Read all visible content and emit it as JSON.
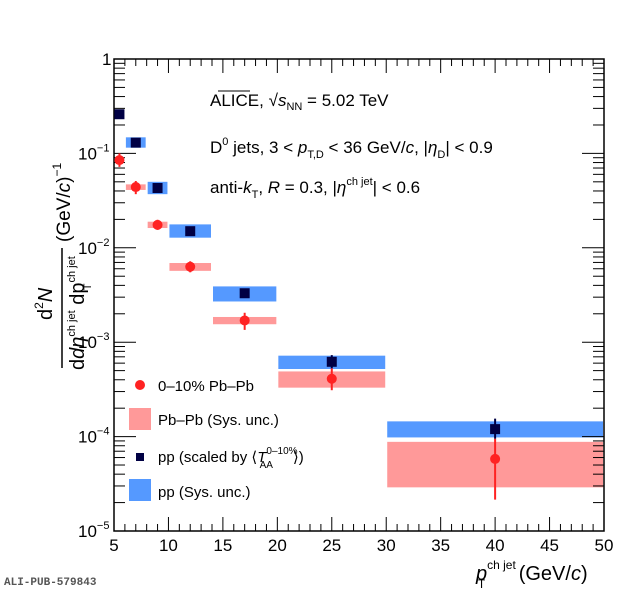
{
  "chart_data": {
    "type": "scatter",
    "title": "",
    "xlabel": "p_T^{ch jet} (GeV/c)",
    "xlabel_parts": {
      "main": "p",
      "sup": "ch jet",
      "sub": "T",
      "unit": " (GeV/",
      "unit_italic": "c",
      "unit_end": ")"
    },
    "ylabel": "d²N / (dη^{ch jet} dp_T^{ch jet}) (GeV/c)^-1",
    "ylabel_parts": {
      "num": "d²N",
      "den_d1": "dη",
      "den_sup1": "ch jet",
      "den_d2": "dp",
      "den_sup2": "ch jet",
      "den_sub2": "T",
      "unit": "(GeV/c)",
      "unit_exp": "−1"
    },
    "xlim": [
      5,
      50
    ],
    "ylim": [
      1e-05,
      1
    ],
    "yscale": "log",
    "x_ticks": [
      "5",
      "10",
      "15",
      "20",
      "25",
      "30",
      "35",
      "40",
      "45",
      "50"
    ],
    "x_tick_values": [
      5,
      10,
      15,
      20,
      25,
      30,
      35,
      40,
      45,
      50
    ],
    "y_ticks": [
      {
        "value": 1,
        "base": "1",
        "exp": ""
      },
      {
        "value": 0.1,
        "base": "10",
        "exp": "−1"
      },
      {
        "value": 0.01,
        "base": "10",
        "exp": "−2"
      },
      {
        "value": 0.001,
        "base": "10",
        "exp": "−3"
      },
      {
        "value": 0.0001,
        "base": "10",
        "exp": "−4"
      },
      {
        "value": 1e-05,
        "base": "10",
        "exp": "−5"
      }
    ],
    "bins": [
      [
        5,
        6
      ],
      [
        6,
        8
      ],
      [
        8,
        10
      ],
      [
        10,
        14
      ],
      [
        14,
        20
      ],
      [
        20,
        30
      ],
      [
        30,
        50
      ]
    ],
    "series": [
      {
        "name": "pp (scaled by ⟨T_AA^{0–10%}⟩)",
        "marker": "square",
        "color": "#000044",
        "sys_color": "#5599ff",
        "x": [
          5.5,
          7,
          9,
          12,
          17,
          25,
          40
        ],
        "y": [
          0.26,
          0.13,
          0.043,
          0.015,
          0.0033,
          0.00062,
          0.00012
        ],
        "stat_lo": [
          0.255,
          0.128,
          0.042,
          0.0147,
          0.00323,
          0.00053,
          9.5e-05
        ],
        "stat_hi": [
          0.265,
          0.132,
          0.044,
          0.0153,
          0.00337,
          0.00073,
          0.000155
        ],
        "sys_lo": [
          0.235,
          0.115,
          0.037,
          0.0128,
          0.0027,
          0.00052,
          9.8e-05
        ],
        "sys_hi": [
          0.29,
          0.148,
          0.05,
          0.0177,
          0.0039,
          0.00072,
          0.000145
        ]
      },
      {
        "name": "0–10% Pb–Pb",
        "marker": "circle",
        "color": "#ff2222",
        "sys_color": "#ff9999",
        "x": [
          5.5,
          7,
          9,
          12,
          17,
          25,
          40
        ],
        "y": [
          0.085,
          0.044,
          0.0175,
          0.0063,
          0.0017,
          0.00041,
          5.8e-05
        ],
        "stat_lo": [
          0.072,
          0.037,
          0.0155,
          0.0055,
          0.00135,
          0.00031,
          2.15e-05
        ],
        "stat_hi": [
          0.1,
          0.051,
          0.0198,
          0.0072,
          0.00205,
          0.00053,
          9.5e-05
        ],
        "sys_lo": [
          0.082,
          0.041,
          0.0162,
          0.0057,
          0.00155,
          0.00033,
          2.9e-05
        ],
        "sys_hi": [
          0.089,
          0.047,
          0.0189,
          0.0069,
          0.00185,
          0.00049,
          8.8e-05
        ]
      }
    ],
    "legend": {
      "placement": "bottom-left",
      "entries": [
        {
          "label": "0–10% Pb–Pb",
          "kind": "circle",
          "color": "#ff2222"
        },
        {
          "label": "Pb–Pb (Sys. unc.)",
          "kind": "box",
          "color": "#ff9999"
        },
        {
          "label_pre": "pp (scaled by ",
          "label_T": "T",
          "label_sup": "0–10%",
          "label_sub": "AA",
          "kind": "square",
          "color": "#000044"
        },
        {
          "label": "pp (Sys. unc.)",
          "kind": "box",
          "color": "#5599ff"
        }
      ]
    },
    "annotations": {
      "line1": {
        "pre": "ALICE, ",
        "s": "s",
        "sub": "NN",
        "post": " = 5.02 TeV"
      },
      "line2": {
        "D": "D",
        "sup0": "0",
        "a": " jets, 3 < ",
        "p": "p",
        "sub_TD": "T,D",
        "b": " < 36 GeV/",
        "c": "c",
        "d": ", |",
        "eta": "η",
        "sub_D": "D",
        "e": "| < 0.9"
      },
      "line3": {
        "a": "anti-",
        "k": "k",
        "sub_T": "T",
        "b": ", ",
        "R": "R",
        "c": " = 0.3, |",
        "eta": "η",
        "sup": "ch jet",
        "d": "| < 0.6"
      }
    },
    "grid": false
  },
  "footer": {
    "publication_id": "ALI-PUB-579843"
  }
}
